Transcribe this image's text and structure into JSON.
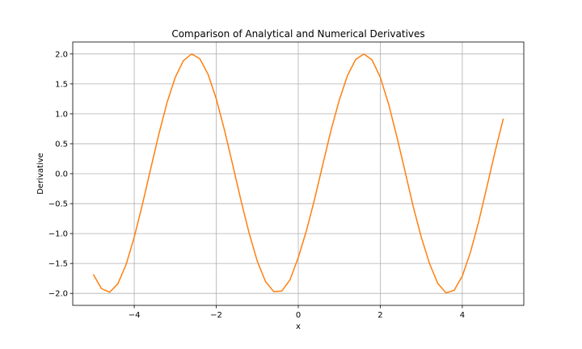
{
  "chart_data": {
    "type": "line",
    "title": "Comparison of Analytical and Numerical Derivatives",
    "xlabel": "x",
    "ylabel": "Derivative",
    "xlim": [
      -5.5,
      5.5
    ],
    "ylim": [
      -2.2,
      2.2
    ],
    "x_ticks": [
      -4,
      -2,
      0,
      2,
      4
    ],
    "x_tick_labels": [
      "−4",
      "−2",
      "0",
      "2",
      "4"
    ],
    "y_ticks": [
      -2.0,
      -1.5,
      -1.0,
      -0.5,
      0.0,
      0.5,
      1.0,
      1.5,
      2.0
    ],
    "y_tick_labels": [
      "−2.0",
      "−1.5",
      "−1.0",
      "−0.5",
      "0.0",
      "0.5",
      "1.0",
      "1.5",
      "2.0"
    ],
    "grid": true,
    "legend": "none",
    "series": [
      {
        "color": "#ff7f0e",
        "x": [
          -5.0,
          -4.8,
          -4.6,
          -4.4,
          -4.2,
          -4.0,
          -3.8,
          -3.6,
          -3.4,
          -3.2,
          -3.0,
          -2.8,
          -2.6,
          -2.4,
          -2.2,
          -2.0,
          -1.8,
          -1.6,
          -1.4,
          -1.2,
          -1.0,
          -0.8,
          -0.6,
          -0.4,
          -0.2,
          0.0,
          0.2,
          0.4,
          0.6,
          0.8,
          1.0,
          1.2,
          1.4,
          1.6,
          1.8,
          2.0,
          2.2,
          2.4,
          2.6,
          2.8,
          3.0,
          3.2,
          3.4,
          3.6,
          3.8,
          4.0,
          4.2,
          4.4,
          4.6,
          4.8,
          5.0
        ],
        "y": [
          -1.68,
          -1.92,
          -1.98,
          -1.84,
          -1.52,
          -1.06,
          -0.51,
          0.08,
          0.66,
          1.19,
          1.61,
          1.89,
          2.0,
          1.92,
          1.66,
          1.25,
          0.73,
          0.15,
          -0.44,
          -0.99,
          -1.46,
          -1.8,
          -1.97,
          -1.96,
          -1.77,
          -1.4,
          -0.95,
          -0.42,
          0.16,
          0.73,
          1.23,
          1.64,
          1.91,
          2.0,
          1.9,
          1.61,
          1.17,
          0.63,
          0.05,
          -0.54,
          -1.06,
          -1.5,
          -1.83,
          -1.99,
          -1.95,
          -1.71,
          -1.31,
          -0.8,
          -0.22,
          0.37,
          0.92
        ],
        "note": ""
      }
    ]
  }
}
